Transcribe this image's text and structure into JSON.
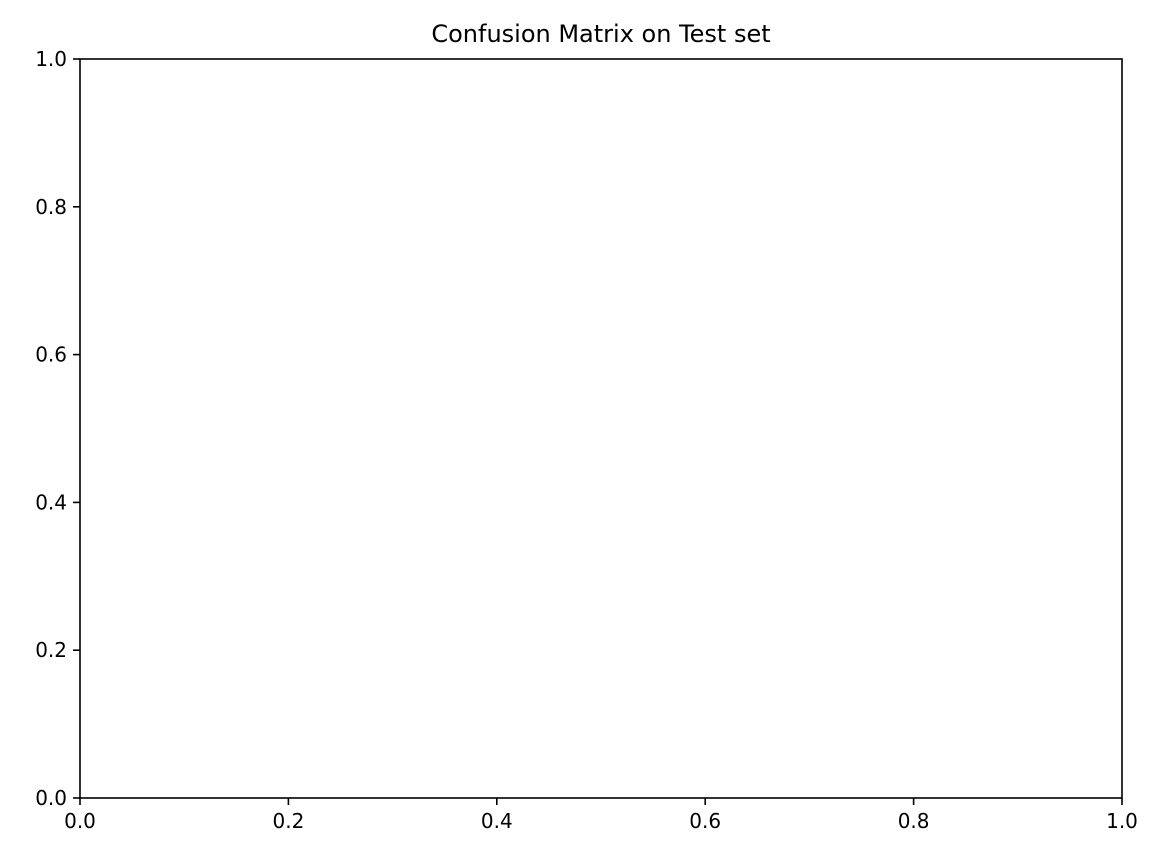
{
  "chart_data": {
    "type": "heatmap",
    "title": "Confusion Matrix on Test set",
    "xlabel": "",
    "ylabel": "",
    "xlim": [
      0.0,
      1.0
    ],
    "ylim": [
      0.0,
      1.0
    ],
    "x_ticks": [
      0.0,
      0.2,
      0.4,
      0.6,
      0.8,
      1.0
    ],
    "x_tick_labels": [
      "0.0",
      "0.2",
      "0.4",
      "0.6",
      "0.8",
      "1.0"
    ],
    "y_ticks": [
      0.0,
      0.2,
      0.4,
      0.6,
      0.8,
      1.0
    ],
    "y_tick_labels": [
      "0.0",
      "0.2",
      "0.4",
      "0.6",
      "0.8",
      "1.0"
    ],
    "grid": false,
    "legend": "none",
    "values": [],
    "colors": {
      "background": "#ffffff",
      "axes": "#000000",
      "text": "#000000"
    }
  }
}
